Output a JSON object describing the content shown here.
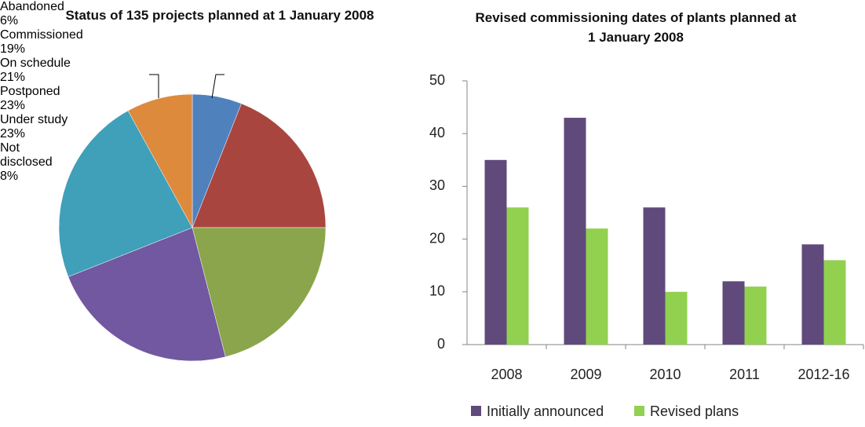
{
  "chart_data": [
    {
      "type": "pie",
      "title": "Status of 135 projects planned at 1 January 2008",
      "categories": [
        "Abandoned",
        "Commissioned",
        "On schedule",
        "Postponed",
        "Under study",
        "Not disclosed"
      ],
      "values": [
        6,
        19,
        21,
        23,
        23,
        8
      ],
      "value_labels": [
        "6%",
        "19%",
        "21%",
        "23%",
        "23%",
        "8%"
      ],
      "colors": [
        "#4f81bd",
        "#a9453f",
        "#8aa54b",
        "#7158a0",
        "#409fb9",
        "#dd8a3d"
      ]
    },
    {
      "type": "bar",
      "title": "Revised commissioning dates of plants planned at 1 January 2008",
      "categories": [
        "2008",
        "2009",
        "2010",
        "2011",
        "2012-16"
      ],
      "series": [
        {
          "name": "Initially announced",
          "color": "#604a7b",
          "values": [
            35,
            43,
            26,
            12,
            19
          ]
        },
        {
          "name": "Revised plans",
          "color": "#92d050",
          "values": [
            26,
            22,
            10,
            11,
            16
          ]
        }
      ],
      "ylim": [
        0,
        50
      ],
      "yticks": [
        0,
        10,
        20,
        30,
        40,
        50
      ],
      "legend": "bottom"
    }
  ]
}
